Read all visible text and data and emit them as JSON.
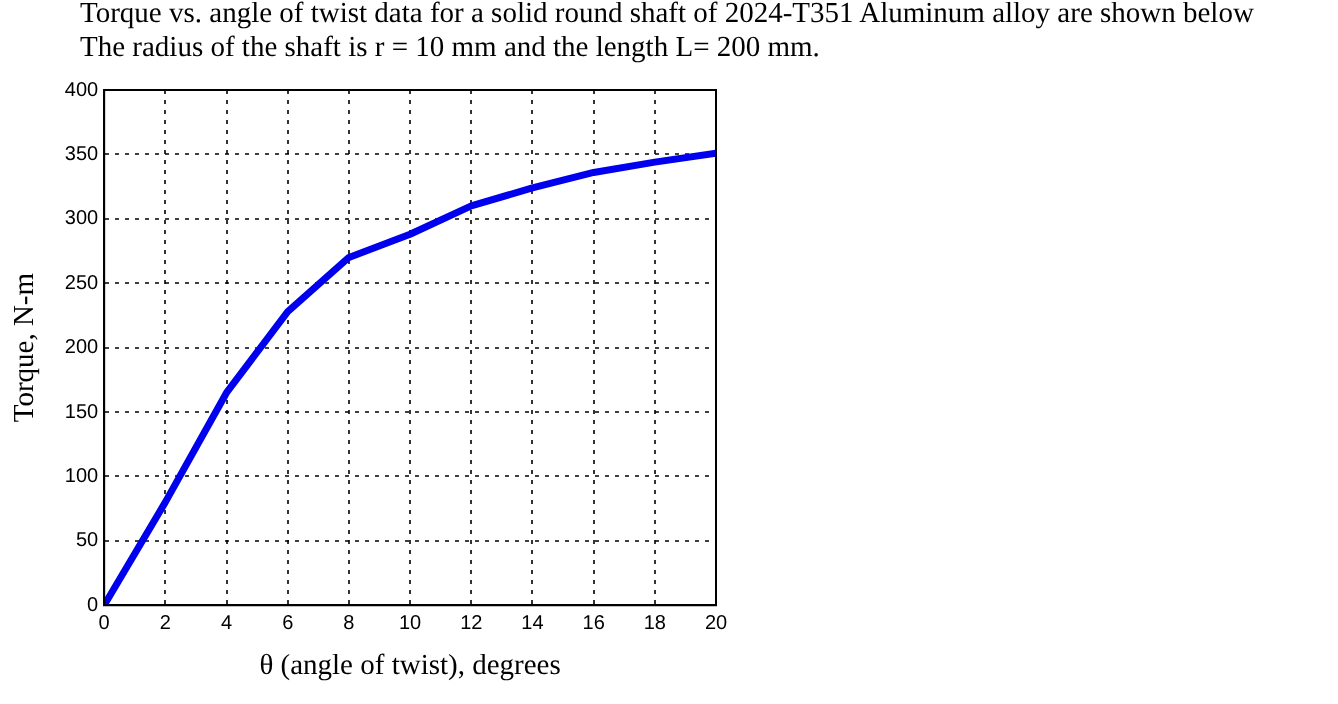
{
  "chart_data": {
    "type": "line",
    "title": "Torque vs. angle of twist data for a solid round shaft of 2024-T351 Aluminum alloy are shown below",
    "subtitle": "The radius of the shaft is r = 10 mm and the length L= 200 mm.",
    "xlabel": "θ (angle of twist), degrees",
    "ylabel": "Torque, N-m",
    "x": [
      0,
      2,
      4,
      6,
      8,
      10,
      12,
      14,
      16,
      18,
      20
    ],
    "series": [
      {
        "color": "#0000ee",
        "values": [
          0,
          80,
          165,
          228,
          270,
          288,
          310,
          324,
          336,
          344,
          351
        ]
      }
    ],
    "xlim": [
      0,
      20
    ],
    "xticks": [
      0,
      2,
      4,
      6,
      8,
      10,
      12,
      14,
      16,
      18,
      20
    ],
    "ylim": [
      0,
      400
    ],
    "yticks": [
      0,
      50,
      100,
      150,
      200,
      250,
      300,
      350,
      400
    ],
    "grid": true,
    "legend": false,
    "marker": "none",
    "line_style": "solid"
  }
}
